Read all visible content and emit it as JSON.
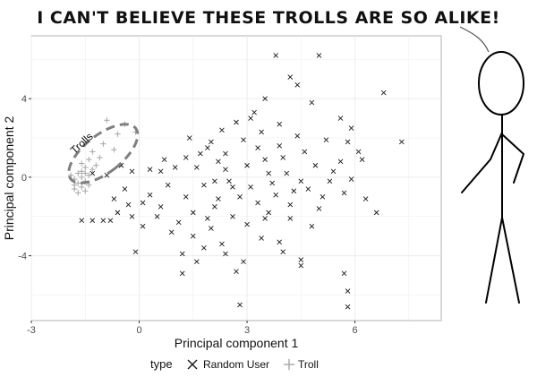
{
  "comic": {
    "caption": "I CAN'T BELIEVE THESE TROLLS ARE SO ALIKE!"
  },
  "colors": {
    "random_user": "#1a1a1a",
    "troll": "#a6a6a6",
    "panel_background": "#ffffff",
    "grid": "#ececec",
    "ellipse": "#7f7f7f"
  },
  "chart_data": {
    "type": "scatter",
    "xlabel": "Principal component 1",
    "ylabel": "Principal component 2",
    "xlim": [
      -3,
      8.4
    ],
    "ylim": [
      -7.3,
      7.2
    ],
    "xticks": [
      -3,
      0,
      3,
      6
    ],
    "yticks": [
      4,
      0,
      -4
    ],
    "grid": true,
    "legend": {
      "title": "type",
      "position": "bottom"
    },
    "annotation": {
      "text": "Trolls",
      "shape": "dashed-ellipse"
    },
    "series": [
      {
        "name": "Random User",
        "marker": "x",
        "points": [
          [
            3.8,
            6.2
          ],
          [
            5.0,
            6.2
          ],
          [
            4.2,
            5.1
          ],
          [
            4.4,
            4.7
          ],
          [
            6.8,
            4.3
          ],
          [
            3.5,
            4.0
          ],
          [
            4.8,
            3.8
          ],
          [
            3.2,
            3.3
          ],
          [
            5.6,
            3.0
          ],
          [
            5.9,
            2.5
          ],
          [
            7.3,
            1.8
          ],
          [
            2.3,
            2.4
          ],
          [
            3.9,
            2.7
          ],
          [
            1.4,
            2.0
          ],
          [
            1.9,
            1.5
          ],
          [
            5.8,
            1.8
          ],
          [
            6.1,
            1.3
          ],
          [
            1.3,
            1.0
          ],
          [
            0.7,
            0.9
          ],
          [
            1.0,
            0.5
          ],
          [
            0.3,
            0.4
          ],
          [
            0.6,
            0.3
          ],
          [
            -0.2,
            0.3
          ],
          [
            -0.5,
            0.6
          ],
          [
            -0.9,
            0.1
          ],
          [
            -1.3,
            0.2
          ],
          [
            5.4,
            0.3
          ],
          [
            2.6,
            -0.5
          ],
          [
            2.8,
            -1.0
          ],
          [
            3.3,
            -1.3
          ],
          [
            2.1,
            -1.5
          ],
          [
            2.6,
            -2.0
          ],
          [
            3.5,
            -2.1
          ],
          [
            2.0,
            -2.6
          ],
          [
            3.0,
            -2.4
          ],
          [
            4.2,
            -2.1
          ],
          [
            1.5,
            -3.0
          ],
          [
            2.3,
            -3.4
          ],
          [
            3.9,
            -3.3
          ],
          [
            1.8,
            -3.6
          ],
          [
            2.4,
            -3.9
          ],
          [
            4.0,
            -3.8
          ],
          [
            -0.1,
            -3.8
          ],
          [
            1.2,
            -3.9
          ],
          [
            2.9,
            -4.3
          ],
          [
            4.5,
            -4.2
          ],
          [
            1.6,
            -4.3
          ],
          [
            1.2,
            -4.9
          ],
          [
            2.7,
            -4.8
          ],
          [
            5.7,
            -4.9
          ],
          [
            5.8,
            -5.8
          ],
          [
            4.5,
            -4.5
          ],
          [
            3.4,
            -3.1
          ],
          [
            2.8,
            -6.5
          ],
          [
            5.8,
            -6.6
          ],
          [
            6.6,
            -1.8
          ],
          [
            -1.3,
            -2.2
          ],
          [
            -1.0,
            -2.2
          ],
          [
            -0.8,
            -2.2
          ],
          [
            -0.6,
            -1.8
          ],
          [
            0.1,
            -1.3
          ],
          [
            0.6,
            -1.5
          ],
          [
            -0.2,
            -2.0
          ],
          [
            1.6,
            0.5
          ],
          [
            1.8,
            -0.4
          ],
          [
            2.2,
            0.8
          ],
          [
            2.0,
            1.8
          ],
          [
            2.4,
            1.2
          ],
          [
            2.5,
            -0.2
          ],
          [
            3.0,
            0.6
          ],
          [
            3.1,
            -0.5
          ],
          [
            3.3,
            1.5
          ],
          [
            3.5,
            0.9
          ],
          [
            3.7,
            -0.3
          ],
          [
            4.0,
            1.0
          ],
          [
            4.1,
            0.2
          ],
          [
            4.3,
            -0.7
          ],
          [
            4.6,
            1.3
          ],
          [
            4.9,
            0.6
          ],
          [
            4.7,
            -0.6
          ],
          [
            5.2,
            1.9
          ],
          [
            5.1,
            -1.0
          ],
          [
            5.3,
            -0.2
          ],
          [
            5.6,
            0.8
          ],
          [
            5.0,
            -1.6
          ],
          [
            4.8,
            -2.5
          ],
          [
            3.6,
            -1.8
          ],
          [
            2.9,
            1.9
          ],
          [
            3.4,
            2.3
          ],
          [
            2.2,
            -1.1
          ],
          [
            1.9,
            -2.1
          ],
          [
            1.3,
            -1.0
          ],
          [
            1.1,
            -2.3
          ],
          [
            0.8,
            -0.4
          ],
          [
            1.5,
            -1.8
          ],
          [
            4.4,
            2.1
          ],
          [
            3.9,
            1.6
          ],
          [
            4.2,
            -1.4
          ],
          [
            2.7,
            2.8
          ],
          [
            3.1,
            3.0
          ],
          [
            5.7,
            -0.8
          ],
          [
            5.9,
            -0.1
          ],
          [
            6.2,
            0.9
          ],
          [
            6.3,
            -1.1
          ],
          [
            -0.4,
            -0.6
          ],
          [
            -0.7,
            -1.1
          ],
          [
            0.3,
            -0.9
          ],
          [
            0.5,
            -2.0
          ],
          [
            0.9,
            -2.8
          ],
          [
            0.1,
            -2.5
          ],
          [
            -1.6,
            -2.2
          ],
          [
            -0.3,
            -1.4
          ],
          [
            3.6,
            0.2
          ],
          [
            3.8,
            -0.9
          ],
          [
            2.4,
            0.4
          ],
          [
            2.1,
            -0.2
          ],
          [
            1.7,
            1.2
          ],
          [
            4.5,
            -0.2
          ]
        ]
      },
      {
        "name": "Troll",
        "marker": "plus",
        "points": [
          [
            -0.9,
            2.9
          ],
          [
            -0.4,
            2.7
          ],
          [
            -0.1,
            2.3
          ],
          [
            -0.6,
            2.2
          ],
          [
            -1.0,
            1.7
          ],
          [
            -0.7,
            1.4
          ],
          [
            -1.3,
            1.3
          ],
          [
            -1.1,
            1.0
          ],
          [
            -1.4,
            0.9
          ],
          [
            -1.2,
            0.6
          ],
          [
            -1.5,
            0.5
          ],
          [
            -1.6,
            0.3
          ],
          [
            -1.7,
            0.2
          ],
          [
            -1.4,
            0.1
          ],
          [
            -1.6,
            0.0
          ],
          [
            -1.8,
            -0.1
          ],
          [
            -1.5,
            -0.2
          ],
          [
            -1.7,
            -0.3
          ],
          [
            -1.6,
            -0.5
          ],
          [
            -1.8,
            -0.6
          ],
          [
            -1.7,
            -0.8
          ],
          [
            -1.5,
            -0.7
          ],
          [
            -1.3,
            0.4
          ],
          [
            -1.9,
            0.1
          ],
          [
            -1.6,
            0.7
          ],
          [
            -1.4,
            -0.4
          ],
          [
            -1.8,
            -0.4
          ],
          [
            -1.5,
            0.2
          ]
        ]
      }
    ]
  }
}
